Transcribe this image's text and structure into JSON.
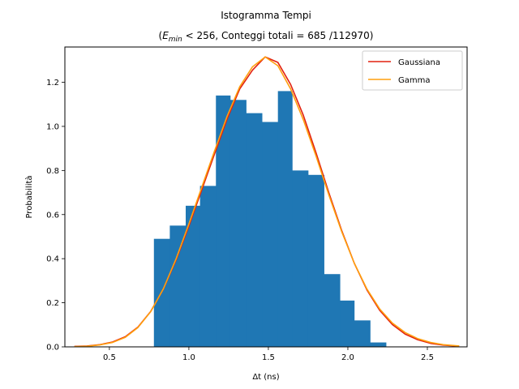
{
  "chart_data": {
    "type": "bar",
    "title": "Istogramma Tempi",
    "subtitle_parts": {
      "open": "(",
      "var_main": "E",
      "var_sub": "min",
      "after_var": " < 256, Conteggi totali = 685 /112970)"
    },
    "xlabel": "Δt (ns)",
    "ylabel": "Probabilità",
    "xlim": [
      0.22,
      2.75
    ],
    "ylim": [
      0,
      1.36
    ],
    "xticks": [
      0.5,
      1.0,
      1.5,
      2.0,
      2.5
    ],
    "xtick_labels": [
      "0.5",
      "1.0",
      "1.5",
      "2.0",
      "2.5"
    ],
    "yticks": [
      0.0,
      0.2,
      0.4,
      0.6,
      0.8,
      1.0,
      1.2
    ],
    "ytick_labels": [
      "0.0",
      "0.2",
      "0.4",
      "0.6",
      "0.8",
      "1.0",
      "1.2"
    ],
    "grid": false,
    "legend_position": "top-right",
    "bar_color": "#1f77b4",
    "bins": [
      {
        "x0": 0.78,
        "x1": 0.88,
        "value": 0.49
      },
      {
        "x0": 0.88,
        "x1": 0.98,
        "value": 0.55
      },
      {
        "x0": 0.98,
        "x1": 1.07,
        "value": 0.64
      },
      {
        "x0": 1.07,
        "x1": 1.17,
        "value": 0.73
      },
      {
        "x0": 1.17,
        "x1": 1.26,
        "value": 1.14
      },
      {
        "x0": 1.26,
        "x1": 1.36,
        "value": 1.12
      },
      {
        "x0": 1.36,
        "x1": 1.46,
        "value": 1.06
      },
      {
        "x0": 1.46,
        "x1": 1.56,
        "value": 1.02
      },
      {
        "x0": 1.56,
        "x1": 1.65,
        "value": 1.16
      },
      {
        "x0": 1.65,
        "x1": 1.75,
        "value": 0.8
      },
      {
        "x0": 1.75,
        "x1": 1.85,
        "value": 0.78
      },
      {
        "x0": 1.85,
        "x1": 1.95,
        "value": 0.33
      },
      {
        "x0": 1.95,
        "x1": 2.04,
        "value": 0.21
      },
      {
        "x0": 2.04,
        "x1": 2.14,
        "value": 0.12
      },
      {
        "x0": 2.14,
        "x1": 2.24,
        "value": 0.02
      }
    ],
    "series": [
      {
        "name": "Gaussiana",
        "color": "#e2200f",
        "x": [
          0.28,
          0.36,
          0.44,
          0.52,
          0.6,
          0.68,
          0.76,
          0.84,
          0.92,
          1.0,
          1.08,
          1.16,
          1.24,
          1.32,
          1.4,
          1.48,
          1.56,
          1.64,
          1.72,
          1.8,
          1.88,
          1.96,
          2.04,
          2.12,
          2.2,
          2.28,
          2.36,
          2.44,
          2.52,
          2.6,
          2.7
        ],
        "y": [
          0.002,
          0.004,
          0.01,
          0.022,
          0.046,
          0.09,
          0.161,
          0.263,
          0.395,
          0.548,
          0.71,
          0.872,
          1.033,
          1.17,
          1.255,
          1.315,
          1.29,
          1.19,
          1.05,
          0.88,
          0.7,
          0.53,
          0.38,
          0.258,
          0.166,
          0.101,
          0.058,
          0.032,
          0.016,
          0.008,
          0.003
        ]
      },
      {
        "name": "Gamma",
        "color": "#ff9f0e",
        "x": [
          0.28,
          0.36,
          0.44,
          0.52,
          0.6,
          0.68,
          0.76,
          0.84,
          0.92,
          1.0,
          1.08,
          1.16,
          1.24,
          1.32,
          1.4,
          1.48,
          1.56,
          1.64,
          1.72,
          1.8,
          1.88,
          1.96,
          2.04,
          2.12,
          2.2,
          2.28,
          2.36,
          2.44,
          2.52,
          2.6,
          2.7
        ],
        "y": [
          0.001,
          0.003,
          0.009,
          0.02,
          0.043,
          0.088,
          0.16,
          0.264,
          0.4,
          0.557,
          0.722,
          0.886,
          1.045,
          1.18,
          1.27,
          1.315,
          1.275,
          1.17,
          1.03,
          0.865,
          0.69,
          0.525,
          0.38,
          0.262,
          0.172,
          0.108,
          0.065,
          0.037,
          0.02,
          0.01,
          0.004
        ]
      }
    ]
  }
}
